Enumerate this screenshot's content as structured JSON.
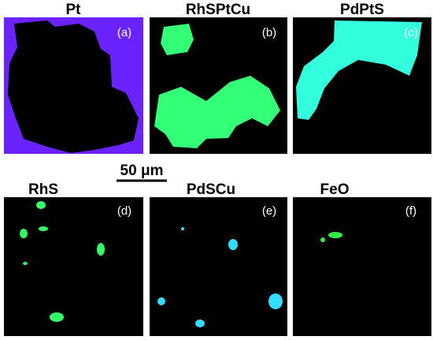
{
  "panels": [
    {
      "title": "Pt",
      "label": "(a)"
    },
    {
      "title": "RhSPtCu",
      "label": "(b)"
    },
    {
      "title": "PdPtS",
      "label": "(c)"
    },
    {
      "title": "RhS",
      "label": "(d)"
    },
    {
      "title": "PdSCu",
      "label": "(e)"
    },
    {
      "title": "FeO",
      "label": "(f)"
    }
  ],
  "scale_bar": "50 μm"
}
